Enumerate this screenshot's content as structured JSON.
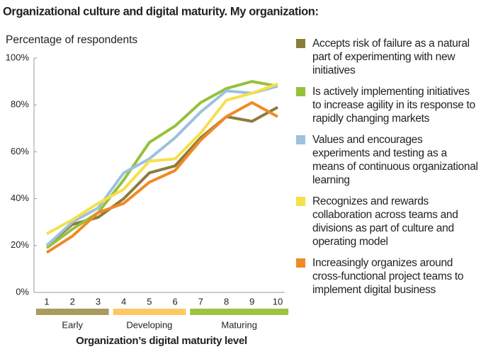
{
  "chart_data": {
    "type": "line",
    "title": "Organizational culture and digital maturity.  My organization:",
    "y_label": "Percentage of respondents",
    "x_label": "Organization’s digital maturity level",
    "categories": [
      "1",
      "2",
      "3",
      "4",
      "5",
      "6",
      "7",
      "8",
      "9",
      "10"
    ],
    "ylim": [
      0,
      100
    ],
    "yticks": [
      {
        "value": 0,
        "label": "0%"
      },
      {
        "value": 20,
        "label": "20%"
      },
      {
        "value": 40,
        "label": "40%"
      },
      {
        "value": 60,
        "label": "60%"
      },
      {
        "value": 80,
        "label": "80%"
      },
      {
        "value": 100,
        "label": "100%"
      }
    ],
    "stages": [
      {
        "label": "Early",
        "first": "1",
        "last": "3",
        "color": "#a99a5e"
      },
      {
        "label": "Developing",
        "first": "4",
        "last": "6",
        "color": "#fcc865"
      },
      {
        "label": "Maturing",
        "first": "7",
        "last": "10",
        "color": "#9cc43e"
      }
    ],
    "series": [
      {
        "name": "Accepts risk of failure as a natural part of experimenting with new initiatives",
        "color": "#8c7c3b",
        "values": [
          20,
          29,
          32,
          40,
          51,
          54,
          66,
          75,
          73,
          79
        ]
      },
      {
        "name": "Is actively implementing initiatives to increase agility in its response to rapidly changing markets",
        "color": "#95c13a",
        "values": [
          19,
          27,
          34,
          48,
          64,
          71,
          81,
          87,
          90,
          88
        ]
      },
      {
        "name": "Values and encourages experiments and testing as a means of continuous organizational learning",
        "color": "#9dc1de",
        "values": [
          20,
          30,
          36,
          51,
          57,
          66,
          77,
          86,
          85,
          88
        ]
      },
      {
        "name": "Recognizes and rewards collaboration across teams and divisions as part of culture and operating model",
        "color": "#f5e04c",
        "values": [
          25,
          31,
          38,
          44,
          56,
          57,
          68,
          82,
          85,
          89
        ]
      },
      {
        "name": "Increasingly organizes around cross-functional project teams to implement digital business",
        "color": "#f08a24",
        "values": [
          17,
          24,
          34,
          38,
          47,
          52,
          65,
          75,
          81,
          75
        ]
      }
    ]
  }
}
